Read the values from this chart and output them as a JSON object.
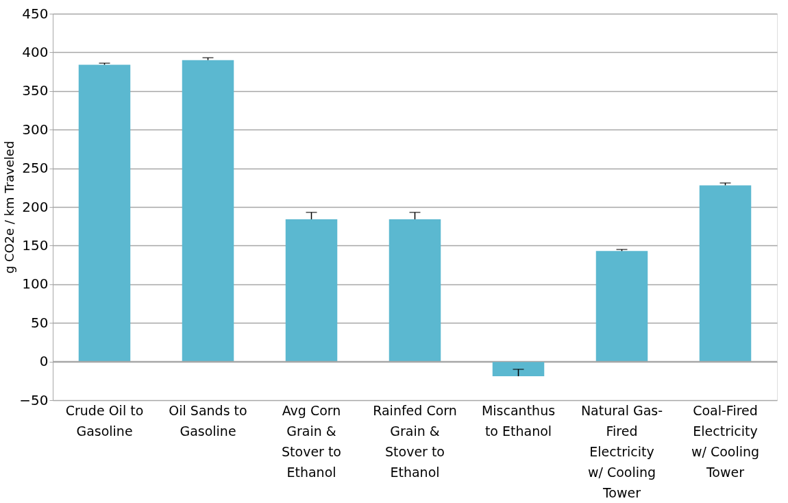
{
  "chart_data": {
    "type": "bar",
    "ylabel": "g CO2e / km Traveled",
    "categories": [
      "Crude Oil to Gasoline",
      "Oil Sands to Gasoline",
      "Avg Corn Grain & Stover to Ethanol",
      "Rainfed Corn Grain & Stover to Ethanol",
      "Miscanthus to Ethanol",
      "Natural Gas-Fired Electricity w/ Cooling Tower",
      "Coal-Fired Electricity w/ Cooling Tower"
    ],
    "values": [
      384,
      390,
      184,
      184,
      -19,
      143,
      228
    ],
    "errors": [
      [
        384,
        386
      ],
      [
        390,
        393
      ],
      [
        184,
        193
      ],
      [
        184,
        193
      ],
      [
        -19,
        -10
      ],
      [
        143,
        145
      ],
      [
        228,
        231
      ]
    ],
    "color": "#5bb8d0",
    "ylim": [
      -50,
      450
    ],
    "yticks": [
      -50,
      0,
      50,
      100,
      150,
      200,
      250,
      300,
      350,
      400,
      450
    ],
    "grid": "y"
  }
}
